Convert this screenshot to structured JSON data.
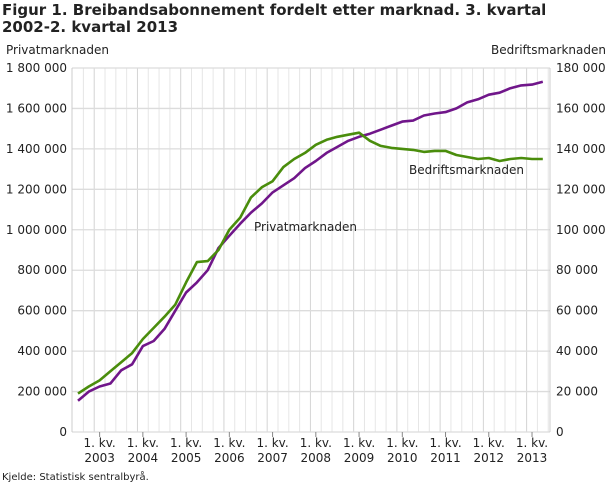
{
  "chart_data": {
    "type": "line",
    "title": "Figur 1. Breibandsabonnement fordelt etter marknad. 3. kvartal 2002-2. kvartal 2013",
    "ylabel_left": "Privatmarknaden",
    "ylabel_right": "Bedriftsmarknaden",
    "ylim_left": [
      0,
      1800000
    ],
    "ylim_right": [
      0,
      180000
    ],
    "yticks_left": [
      "0",
      "200 000",
      "400 000",
      "600 000",
      "800 000",
      "1 000 000",
      "1 200 000",
      "1 400 000",
      "1 600 000",
      "1 800 000"
    ],
    "yticks_right": [
      "0",
      "20 000",
      "40 000",
      "60 000",
      "80 000",
      "100 000",
      "120 000",
      "140 000",
      "160 000",
      "180 000"
    ],
    "xtick_prefix": "1. kv.",
    "xticks": [
      "2003",
      "2004",
      "2005",
      "2006",
      "2007",
      "2008",
      "2009",
      "2010",
      "2011",
      "2012",
      "2013"
    ],
    "x_start": "3. kvartal 2002",
    "grid": true,
    "series": [
      {
        "name": "Privatmarknaden",
        "axis": "left",
        "color": "#70168a",
        "label": "Privatmarknaden",
        "values": [
          155000,
          200000,
          225000,
          240000,
          305000,
          335000,
          425000,
          450000,
          510000,
          600000,
          690000,
          740000,
          800000,
          910000,
          970000,
          1030000,
          1085000,
          1130000,
          1185000,
          1220000,
          1255000,
          1305000,
          1340000,
          1380000,
          1410000,
          1440000,
          1460000,
          1475000,
          1495000,
          1515000,
          1535000,
          1540000,
          1565000,
          1575000,
          1582000,
          1600000,
          1630000,
          1645000,
          1668000,
          1678000,
          1700000,
          1714000,
          1718000,
          1732000
        ]
      },
      {
        "name": "Bedriftsmarknaden",
        "axis": "right",
        "color": "#4a8d0c",
        "label": "Bedriftsmarknaden",
        "values": [
          19000,
          22500,
          25500,
          30000,
          34500,
          39000,
          46000,
          51500,
          57000,
          63000,
          74000,
          84000,
          84500,
          90000,
          100000,
          106000,
          116000,
          121000,
          124000,
          131000,
          135000,
          138000,
          142000,
          144500,
          146000,
          147000,
          148000,
          144000,
          141500,
          140500,
          140000,
          139500,
          138500,
          139000,
          139000,
          137000,
          136000,
          135000,
          135500,
          134000,
          135000,
          135500,
          135000,
          135000
        ]
      }
    ]
  },
  "source": "Kjelde: Statistisk sentralbyrå."
}
